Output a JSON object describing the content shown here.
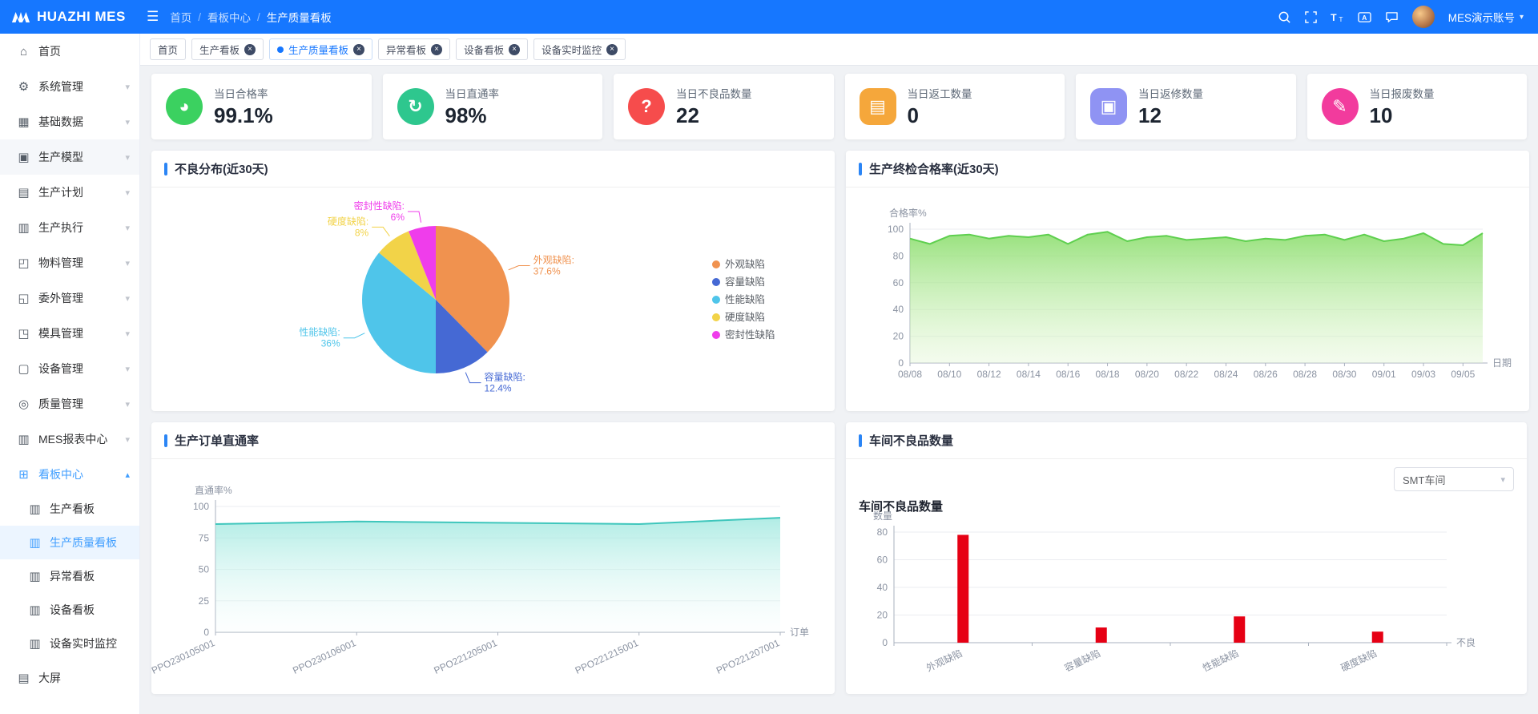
{
  "theme": {
    "header_bg": "#1677ff",
    "primary": "#2b85f5",
    "sidebar_active": "#409eff",
    "bar_red": "#e60014"
  },
  "app": {
    "logo_text": "HUAZHI MES"
  },
  "icons": {
    "hamburger": "☰",
    "separator": "/",
    "chevron_down": "▾",
    "chevron_up": "▴",
    "close": "×",
    "caret_down": "▾"
  },
  "header": {
    "breadcrumb": [
      "首页",
      "看板中心",
      "生产质量看板"
    ],
    "username": "MES演示账号"
  },
  "tabs": [
    {
      "label": "首页"
    },
    {
      "label": "生产看板"
    },
    {
      "label": "生产质量看板"
    },
    {
      "label": "异常看板"
    },
    {
      "label": "设备看板"
    },
    {
      "label": "设备实时监控"
    }
  ],
  "sidebar": {
    "items": [
      {
        "label": "首页",
        "glyph": "⌂"
      },
      {
        "label": "系统管理",
        "glyph": "⚙"
      },
      {
        "label": "基础数据",
        "glyph": "▦"
      },
      {
        "label": "生产模型",
        "glyph": "▣"
      },
      {
        "label": "生产计划",
        "glyph": "▤"
      },
      {
        "label": "生产执行",
        "glyph": "▥"
      },
      {
        "label": "物料管理",
        "glyph": "◰"
      },
      {
        "label": "委外管理",
        "glyph": "◱"
      },
      {
        "label": "模具管理",
        "glyph": "◳"
      },
      {
        "label": "设备管理",
        "glyph": "▢"
      },
      {
        "label": "质量管理",
        "glyph": "◎"
      },
      {
        "label": "MES报表中心",
        "glyph": "▥"
      },
      {
        "label": "看板中心",
        "glyph": "⊞"
      }
    ],
    "board_children": [
      {
        "label": "生产看板",
        "glyph": "▥"
      },
      {
        "label": "生产质量看板",
        "glyph": "▥"
      },
      {
        "label": "异常看板",
        "glyph": "▥"
      },
      {
        "label": "设备看板",
        "glyph": "▥"
      },
      {
        "label": "设备实时监控",
        "glyph": "▥"
      }
    ],
    "footer_item": {
      "label": "大屏",
      "glyph": "▤"
    }
  },
  "kpis": [
    {
      "label": "当日合格率",
      "value": "99.1%",
      "glyph": "◕",
      "color": "#3bd160",
      "shape": "circle"
    },
    {
      "label": "当日直通率",
      "value": "98%",
      "glyph": "↻",
      "color": "#2ec78e",
      "shape": "circle"
    },
    {
      "label": "当日不良品数量",
      "value": "22",
      "glyph": "?",
      "color": "#f64c4c",
      "shape": "circle"
    },
    {
      "label": "当日返工数量",
      "value": "0",
      "glyph": "▤",
      "color": "#f5a73b",
      "shape": "square"
    },
    {
      "label": "当日返修数量",
      "value": "12",
      "glyph": "▣",
      "color": "#8f93f3",
      "shape": "square"
    },
    {
      "label": "当日报废数量",
      "value": "10",
      "glyph": "✎",
      "color": "#f23b9d",
      "shape": "circle"
    }
  ],
  "chart_data": [
    {
      "id": "defect-distribution-pie",
      "type": "pie",
      "title": "不良分布(近30天)",
      "categories": [
        "外观缺陷",
        "容量缺陷",
        "性能缺陷",
        "硬度缺陷",
        "密封性缺陷"
      ],
      "values": [
        37.6,
        12.4,
        36,
        8,
        6
      ],
      "unit": "%",
      "colors": [
        "#f0924f",
        "#4569d4",
        "#4fc5ea",
        "#f2d348",
        "#ef3deb"
      ],
      "legend_position": "right"
    },
    {
      "id": "final-inspection-pass-rate",
      "type": "area",
      "title": "生产终检合格率(近30天)",
      "ylabel": "合格率%",
      "xlabel": "日期",
      "ylim": [
        0,
        100
      ],
      "ytick_step": 20,
      "x_label_every": 2,
      "categories": [
        "08/08",
        "08/09",
        "08/10",
        "08/11",
        "08/12",
        "08/13",
        "08/14",
        "08/15",
        "08/16",
        "08/17",
        "08/18",
        "08/19",
        "08/20",
        "08/21",
        "08/22",
        "08/23",
        "08/24",
        "08/25",
        "08/26",
        "08/27",
        "08/28",
        "08/29",
        "08/30",
        "08/31",
        "09/01",
        "09/02",
        "09/03",
        "09/04",
        "09/05",
        "09/06"
      ],
      "values": [
        93,
        89,
        95,
        96,
        93,
        95,
        94,
        96,
        89,
        96,
        98,
        91,
        94,
        95,
        92,
        93,
        94,
        91,
        93,
        92,
        95,
        96,
        92,
        96,
        91,
        93,
        97,
        89,
        88,
        97
      ],
      "line_color": "#5ecf4e",
      "fill_from": "rgba(140,222,110,0.9)",
      "fill_to": "rgba(222,245,205,0.35)",
      "grid": true,
      "legend_position": "none"
    },
    {
      "id": "production-order-fpy",
      "type": "area",
      "title": "生产订单直通率",
      "ylabel": "直通率%",
      "xlabel": "订单",
      "ylim": [
        0,
        100
      ],
      "ytick_step": 25,
      "rotate_x": -25,
      "categories": [
        "PPO230105001",
        "PPO230106001",
        "PPO221205001",
        "PPO221215001",
        "PPO221207001"
      ],
      "values": [
        86,
        88,
        87,
        86,
        91
      ],
      "line_color": "#3fc6bc",
      "fill_from": "rgba(150,230,220,0.75)",
      "fill_to": "rgba(245,253,252,0.2)",
      "grid": true,
      "legend_position": "none"
    },
    {
      "id": "workshop-defect-count",
      "type": "bar",
      "title": "车间不良品数量",
      "ylabel": "数量",
      "xlabel": "不良",
      "ylim": [
        0,
        80
      ],
      "ytick_step": 20,
      "rotate_x": -25,
      "categories": [
        "外观缺陷",
        "容量缺陷",
        "性能缺陷",
        "硬度缺陷"
      ],
      "values": [
        78,
        11,
        19,
        8
      ],
      "bar_color": "#e60014",
      "grid": true,
      "legend_position": "none",
      "selector": {
        "value": "SMT车间"
      }
    }
  ]
}
